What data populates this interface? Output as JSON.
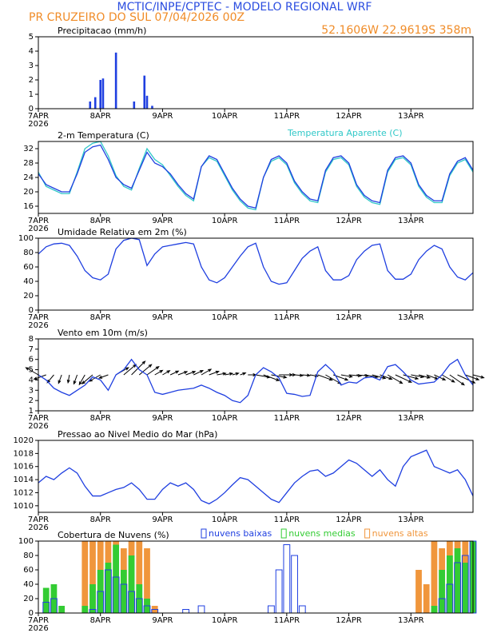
{
  "header": {
    "title": "MCTIC/INPE/CPTEC - MODELO REGIONAL WRF",
    "station": "PR CRUZEIRO DO SUL   07/04/2026 00Z",
    "location": "52.1606W 22.9619S 358m"
  },
  "chart_data": [
    {
      "type": "bar",
      "title": "Precipitacao (mm/h)",
      "x": [
        20,
        22,
        24,
        25,
        30,
        37,
        41,
        42,
        44
      ],
      "values": [
        0.5,
        0.8,
        2,
        2.1,
        3.9,
        0.5,
        2.3,
        0.9,
        0.2
      ],
      "color": "#1f3fe0",
      "xlim": [
        0,
        168
      ],
      "xticks": [
        {
          "value": 0,
          "label": "7APR"
        },
        {
          "value": 24,
          "label": "8APR"
        },
        {
          "value": 48,
          "label": "9APR"
        },
        {
          "value": 72,
          "label": "10APR"
        },
        {
          "value": 96,
          "label": "11APR"
        },
        {
          "value": 120,
          "label": "12APR"
        },
        {
          "value": 144,
          "label": "13APR"
        }
      ],
      "year": "2026",
      "ylim": [
        0,
        5
      ],
      "yticks": [
        0,
        1,
        2,
        3,
        4,
        5
      ]
    },
    {
      "type": "line",
      "title": "2-m Temperatura (C)",
      "x": [
        0,
        3,
        6,
        9,
        12,
        15,
        18,
        21,
        24,
        27,
        30,
        33,
        36,
        39,
        42,
        45,
        48,
        51,
        54,
        57,
        60,
        63,
        66,
        69,
        72,
        75,
        78,
        81,
        84,
        87,
        90,
        93,
        96,
        99,
        102,
        105,
        108,
        111,
        114,
        117,
        120,
        123,
        126,
        129,
        132,
        135,
        138,
        141,
        144,
        147,
        150,
        153,
        156,
        159,
        162,
        165,
        168
      ],
      "series": [
        {
          "name": "Temperatura Aparente (C)",
          "color": "#30c8c8",
          "values": [
            25.5,
            21.5,
            20.5,
            19.5,
            19.5,
            25.5,
            32,
            33.5,
            34,
            30,
            24.5,
            21.5,
            20.5,
            26.5,
            32,
            29,
            27.5,
            24.5,
            21.5,
            19,
            17.5,
            27,
            29.5,
            28.5,
            24.5,
            20.5,
            17.5,
            15.5,
            15,
            24,
            28.5,
            29.5,
            27.5,
            22.5,
            19.5,
            17.5,
            17,
            25.5,
            29,
            29.5,
            27.5,
            21.5,
            18.5,
            17,
            16.5,
            25.5,
            29,
            29.5,
            27.5,
            21.5,
            18.5,
            17,
            17,
            24.5,
            28,
            29,
            25.5
          ]
        },
        {
          "color": "#1f3fe0",
          "values": [
            25,
            22,
            21,
            20,
            20,
            25,
            31,
            32.5,
            33,
            29,
            24,
            22,
            21,
            26,
            31,
            28,
            27,
            25,
            22,
            19.5,
            18,
            27,
            30,
            29,
            25,
            21,
            18,
            16,
            15.5,
            24,
            29,
            30,
            28,
            23,
            20,
            18,
            17.5,
            26,
            29.5,
            30,
            28,
            22,
            19,
            17.5,
            17,
            26,
            29.5,
            30,
            28,
            22,
            19,
            17.5,
            17.5,
            25,
            28.5,
            29.5,
            26
          ]
        }
      ],
      "xlim": [
        0,
        168
      ],
      "xticks": [
        {
          "value": 0,
          "label": "7APR"
        },
        {
          "value": 24,
          "label": "8APR"
        },
        {
          "value": 48,
          "label": "9APR"
        },
        {
          "value": 72,
          "label": "10APR"
        },
        {
          "value": 96,
          "label": "11APR"
        },
        {
          "value": 120,
          "label": "12APR"
        },
        {
          "value": 144,
          "label": "13APR"
        }
      ],
      "year": "2026",
      "ylim": [
        14,
        34
      ],
      "yticks": [
        16,
        20,
        24,
        28,
        32
      ]
    },
    {
      "type": "line",
      "title": "Umidade Relativa em 2m (%)",
      "x": [
        0,
        3,
        6,
        9,
        12,
        15,
        18,
        21,
        24,
        27,
        30,
        33,
        36,
        39,
        42,
        45,
        48,
        51,
        54,
        57,
        60,
        63,
        66,
        69,
        72,
        75,
        78,
        81,
        84,
        87,
        90,
        93,
        96,
        99,
        102,
        105,
        108,
        111,
        114,
        117,
        120,
        123,
        126,
        129,
        132,
        135,
        138,
        141,
        144,
        147,
        150,
        153,
        156,
        159,
        162,
        165,
        168
      ],
      "series": [
        {
          "color": "#1f3fe0",
          "values": [
            78,
            88,
            92,
            93,
            90,
            75,
            55,
            45,
            42,
            50,
            85,
            97,
            100,
            98,
            62,
            78,
            88,
            90,
            92,
            94,
            92,
            60,
            42,
            38,
            45,
            60,
            75,
            88,
            93,
            60,
            40,
            36,
            38,
            55,
            72,
            82,
            88,
            55,
            42,
            42,
            48,
            70,
            82,
            90,
            92,
            55,
            43,
            43,
            50,
            70,
            82,
            90,
            85,
            60,
            46,
            42,
            52
          ]
        }
      ],
      "xlim": [
        0,
        168
      ],
      "xticks": [
        {
          "value": 0,
          "label": "7APR"
        },
        {
          "value": 24,
          "label": "8APR"
        },
        {
          "value": 48,
          "label": "9APR"
        },
        {
          "value": 72,
          "label": "10APR"
        },
        {
          "value": 96,
          "label": "11APR"
        },
        {
          "value": 120,
          "label": "12APR"
        },
        {
          "value": 144,
          "label": "13APR"
        }
      ],
      "year": "2026",
      "ylim": [
        0,
        100
      ],
      "yticks": [
        0,
        20,
        40,
        60,
        80,
        100
      ]
    },
    {
      "type": "line",
      "title": "Vento em 10m (m/s)",
      "x": [
        0,
        3,
        6,
        9,
        12,
        15,
        18,
        21,
        24,
        27,
        30,
        33,
        36,
        39,
        42,
        45,
        48,
        51,
        54,
        57,
        60,
        63,
        66,
        69,
        72,
        75,
        78,
        81,
        84,
        87,
        90,
        93,
        96,
        99,
        102,
        105,
        108,
        111,
        114,
        117,
        120,
        123,
        126,
        129,
        132,
        135,
        138,
        141,
        144,
        147,
        150,
        153,
        156,
        159,
        162,
        165,
        168
      ],
      "series": [
        {
          "color": "#1f3fe0",
          "values": [
            4.5,
            4,
            3.2,
            2.8,
            2.5,
            3,
            3.5,
            4.3,
            4,
            3,
            4.5,
            5,
            6,
            5,
            4.5,
            2.8,
            2.6,
            2.8,
            3,
            3.1,
            3.2,
            3.5,
            3.2,
            2.8,
            2.5,
            2,
            1.8,
            2.5,
            4.5,
            5.2,
            4.8,
            4.2,
            2.7,
            2.6,
            2.4,
            2.5,
            4.8,
            5.5,
            4.8,
            3.5,
            3.8,
            3.7,
            4.2,
            4.3,
            4,
            5.3,
            5.5,
            4.8,
            4,
            3.6,
            3.7,
            3.8,
            4.5,
            5.5,
            6,
            4.5,
            3.5
          ]
        }
      ],
      "direction": [
        300,
        250,
        220,
        200,
        190,
        200,
        210,
        230,
        240,
        250,
        60,
        50,
        45,
        50,
        55,
        60,
        60,
        65,
        70,
        70,
        65,
        60,
        70,
        80,
        80,
        75,
        70,
        90,
        100,
        110,
        100,
        90,
        90,
        95,
        95,
        100,
        110,
        120,
        110,
        100,
        95,
        95,
        100,
        105,
        110,
        120,
        115,
        105,
        100,
        105,
        110,
        115,
        120,
        125,
        115,
        110,
        105
      ],
      "xlim": [
        0,
        168
      ],
      "xticks": [
        {
          "value": 0,
          "label": "7APR"
        },
        {
          "value": 24,
          "label": "8APR"
        },
        {
          "value": 48,
          "label": "9APR"
        },
        {
          "value": 72,
          "label": "10APR"
        },
        {
          "value": 96,
          "label": "11APR"
        },
        {
          "value": 120,
          "label": "12APR"
        },
        {
          "value": 144,
          "label": "13APR"
        }
      ],
      "year": "2026",
      "ylim": [
        1,
        8
      ],
      "yticks": [
        1,
        2,
        3,
        4,
        5,
        6,
        7,
        8
      ]
    },
    {
      "type": "line",
      "title": "Pressao ao Nivel Medio do Mar (hPa)",
      "x": [
        0,
        3,
        6,
        9,
        12,
        15,
        18,
        21,
        24,
        27,
        30,
        33,
        36,
        39,
        42,
        45,
        48,
        51,
        54,
        57,
        60,
        63,
        66,
        69,
        72,
        75,
        78,
        81,
        84,
        87,
        90,
        93,
        96,
        99,
        102,
        105,
        108,
        111,
        114,
        117,
        120,
        123,
        126,
        129,
        132,
        135,
        138,
        141,
        144,
        147,
        150,
        153,
        156,
        159,
        162,
        165,
        168
      ],
      "series": [
        {
          "color": "#1f3fe0",
          "values": [
            1013.5,
            1014.5,
            1014,
            1015,
            1015.8,
            1015,
            1013,
            1011.5,
            1011.5,
            1012,
            1012.5,
            1012.8,
            1013.5,
            1012.5,
            1011,
            1011,
            1012.5,
            1013.5,
            1013,
            1013.5,
            1012.5,
            1010.8,
            1010.3,
            1011,
            1012,
            1013.2,
            1014.3,
            1014,
            1013,
            1012,
            1011,
            1010.5,
            1012,
            1013.5,
            1014.5,
            1015.3,
            1015.5,
            1014.5,
            1015,
            1016,
            1017,
            1016.5,
            1015.5,
            1014.5,
            1015.5,
            1014,
            1013,
            1016,
            1017.5,
            1018,
            1018.5,
            1016,
            1015.5,
            1015,
            1015.5,
            1014,
            1011.5
          ]
        }
      ],
      "xlim": [
        0,
        168
      ],
      "xticks": [
        {
          "value": 0,
          "label": "7APR"
        },
        {
          "value": 24,
          "label": "8APR"
        },
        {
          "value": 48,
          "label": "9APR"
        },
        {
          "value": 72,
          "label": "10APR"
        },
        {
          "value": 96,
          "label": "11APR"
        },
        {
          "value": 120,
          "label": "12APR"
        },
        {
          "value": 144,
          "label": "13APR"
        }
      ],
      "year": "2026",
      "ylim": [
        1009,
        1020
      ],
      "yticks": [
        1010,
        1012,
        1014,
        1016,
        1018,
        1020
      ]
    },
    {
      "type": "bar",
      "title": "Cobertura de Nuvens (%)",
      "x": [
        0,
        3,
        6,
        9,
        12,
        15,
        18,
        21,
        24,
        27,
        30,
        33,
        36,
        39,
        42,
        45,
        48,
        51,
        54,
        57,
        60,
        63,
        66,
        69,
        72,
        75,
        78,
        81,
        84,
        87,
        90,
        93,
        96,
        99,
        102,
        105,
        108,
        111,
        114,
        117,
        120,
        123,
        126,
        129,
        132,
        135,
        138,
        141,
        144,
        147,
        150,
        153,
        156,
        159,
        162,
        165,
        168
      ],
      "series": [
        {
          "name": "nuvens altas",
          "color": "#f0963c",
          "style": "filled",
          "values": [
            0,
            0,
            0,
            0,
            0,
            0,
            100,
            100,
            100,
            100,
            100,
            90,
            100,
            100,
            90,
            10,
            0,
            0,
            0,
            0,
            0,
            0,
            0,
            0,
            0,
            0,
            0,
            0,
            0,
            0,
            0,
            0,
            0,
            0,
            0,
            0,
            0,
            0,
            0,
            0,
            0,
            0,
            0,
            0,
            0,
            0,
            0,
            0,
            0,
            60,
            40,
            100,
            90,
            100,
            100,
            100,
            80
          ]
        },
        {
          "name": "nuvens medias",
          "color": "#33cc33",
          "style": "filled",
          "values": [
            0,
            35,
            40,
            10,
            0,
            0,
            10,
            40,
            60,
            70,
            95,
            60,
            80,
            40,
            20,
            0,
            0,
            0,
            0,
            0,
            0,
            0,
            0,
            0,
            0,
            0,
            0,
            0,
            0,
            0,
            0,
            0,
            0,
            0,
            0,
            0,
            0,
            0,
            0,
            0,
            0,
            0,
            0,
            0,
            0,
            0,
            0,
            0,
            0,
            0,
            0,
            10,
            60,
            80,
            90,
            70,
            100
          ]
        },
        {
          "name": "nuvens baixas",
          "color": "#1f3fe0",
          "style": "outline",
          "values": [
            0,
            15,
            20,
            0,
            0,
            0,
            0,
            5,
            30,
            60,
            50,
            40,
            30,
            20,
            10,
            5,
            0,
            0,
            0,
            5,
            0,
            10,
            0,
            0,
            0,
            0,
            0,
            0,
            0,
            0,
            10,
            60,
            95,
            80,
            10,
            0,
            0,
            0,
            0,
            0,
            0,
            0,
            0,
            0,
            0,
            0,
            0,
            0,
            0,
            0,
            0,
            0,
            20,
            40,
            70,
            80,
            100
          ]
        }
      ],
      "xlim": [
        0,
        168
      ],
      "xticks": [
        {
          "value": 0,
          "label": "7APR"
        },
        {
          "value": 24,
          "label": "8APR"
        },
        {
          "value": 48,
          "label": "9APR"
        },
        {
          "value": 72,
          "label": "10APR"
        },
        {
          "value": 96,
          "label": "11APR"
        },
        {
          "value": 120,
          "label": "12APR"
        },
        {
          "value": 144,
          "label": "13APR"
        }
      ],
      "year": "2026",
      "ylim": [
        0,
        100
      ],
      "yticks": [
        0,
        20,
        40,
        60,
        80,
        100
      ]
    }
  ]
}
